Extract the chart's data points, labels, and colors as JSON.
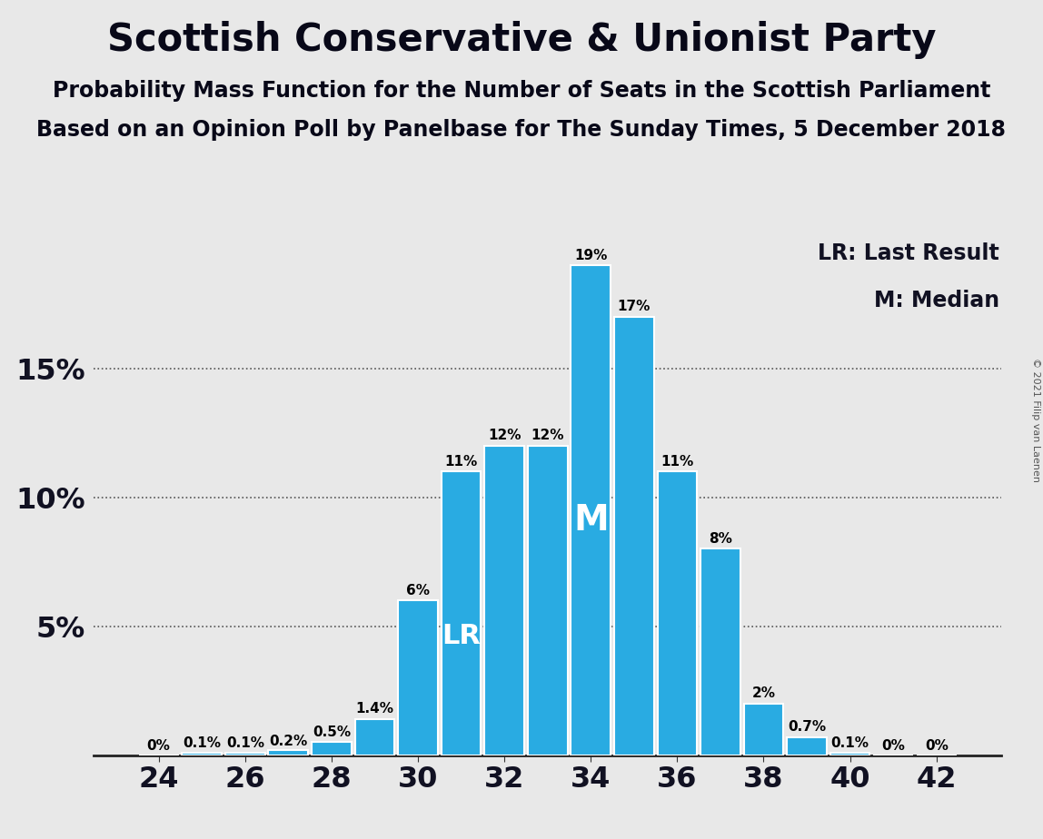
{
  "title": "Scottish Conservative & Unionist Party",
  "subtitle1": "Probability Mass Function for the Number of Seats in the Scottish Parliament",
  "subtitle2": "Based on an Opinion Poll by Panelbase for The Sunday Times, 5 December 2018",
  "copyright": "© 2021 Filip van Laenen",
  "legend1": "LR: Last Result",
  "legend2": "M: Median",
  "bar_color": "#29ABE2",
  "background_color": "#E8E8E8",
  "seats": [
    24,
    25,
    26,
    27,
    28,
    29,
    30,
    31,
    32,
    33,
    34,
    35,
    36,
    37,
    38,
    39,
    40,
    41,
    42
  ],
  "probabilities": [
    0.0,
    0.1,
    0.1,
    0.2,
    0.5,
    1.4,
    6.0,
    11.0,
    12.0,
    12.0,
    19.0,
    17.0,
    11.0,
    8.0,
    2.0,
    0.7,
    0.1,
    0.0,
    0.0
  ],
  "labels": [
    "0%",
    "0.1%",
    "0.1%",
    "0.2%",
    "0.5%",
    "1.4%",
    "6%",
    "11%",
    "12%",
    "12%",
    "19%",
    "17%",
    "11%",
    "8%",
    "2%",
    "0.7%",
    "0.1%",
    "0%",
    "0%"
  ],
  "last_result_seat": 31,
  "median_seat": 34,
  "ylim_max": 20.5,
  "yticks": [
    5,
    10,
    15
  ],
  "ytick_labels": [
    "5%",
    "10%",
    "15%"
  ],
  "xticks": [
    24,
    26,
    28,
    30,
    32,
    34,
    36,
    38,
    40,
    42
  ],
  "title_fontsize": 30,
  "subtitle_fontsize": 17,
  "axis_fontsize": 23,
  "label_fontsize": 11,
  "lr_fontsize": 22,
  "m_fontsize": 28,
  "legend_fontsize": 17
}
